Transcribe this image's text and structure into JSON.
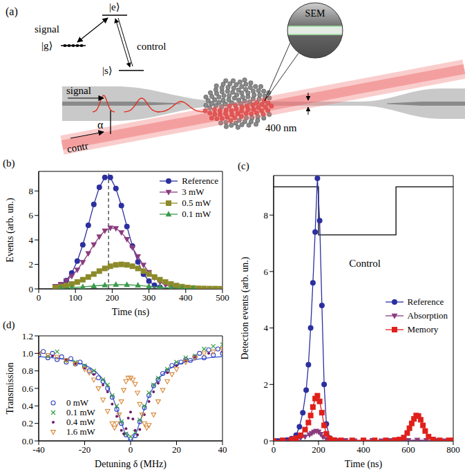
{
  "diagram": {
    "panel_label": "(a)",
    "level_e": "|e⟩",
    "level_g": "|g⟩",
    "level_s": "|s⟩",
    "transition_signal": "signal",
    "transition_control": "control",
    "sem": "SEM",
    "waist": "400 nm",
    "angle": "α",
    "signal_input": "signal",
    "control_input": "contr"
  },
  "chart_data": [
    {
      "type": "line",
      "panel_label": "(b)",
      "x_label": "Time (ns)",
      "y_label": "Events (arb. un.)",
      "xlim": [
        0,
        500
      ],
      "xticks": [
        0,
        100,
        200,
        300,
        400,
        500
      ],
      "ylim": [
        0,
        9.6
      ],
      "yticks": [
        0,
        2,
        4,
        6,
        8
      ],
      "legend": "upper right",
      "reference_line_x": 190,
      "series": [
        {
          "name": "Reference",
          "color": "#2c2f9e",
          "marker": "circle",
          "x": [
            45,
            60,
            75,
            90,
            105,
            120,
            135,
            150,
            165,
            180,
            195,
            210,
            225,
            240,
            255,
            270,
            285,
            300,
            315,
            330
          ],
          "values": [
            0.14,
            0.32,
            0.68,
            1.3,
            2.27,
            3.6,
            5.2,
            6.9,
            8.3,
            9.1,
            9.1,
            8.2,
            6.8,
            5.1,
            3.5,
            2.2,
            1.2,
            0.64,
            0.3,
            0.13
          ]
        },
        {
          "name": "3 mW",
          "color": "#8a3c7e",
          "marker": "triangle-down",
          "x": [
            45,
            60,
            75,
            90,
            105,
            120,
            135,
            150,
            165,
            180,
            195,
            210,
            225,
            240,
            255,
            270,
            285,
            300,
            315,
            330,
            345,
            360,
            375,
            390
          ],
          "values": [
            0.22,
            0.39,
            0.66,
            1.04,
            1.55,
            2.18,
            2.89,
            3.61,
            4.26,
            4.75,
            4.98,
            4.94,
            4.61,
            4.06,
            3.37,
            2.64,
            1.95,
            1.36,
            0.9,
            0.55,
            0.33,
            0.18,
            0.09,
            0.05
          ]
        },
        {
          "name": "0.5 mW",
          "color": "#8c8a2a",
          "marker": "square",
          "x": [
            45,
            60,
            75,
            90,
            105,
            120,
            135,
            150,
            165,
            180,
            195,
            210,
            225,
            240,
            255,
            270,
            285,
            300,
            315,
            330,
            345,
            360,
            375,
            390,
            405,
            420,
            435,
            450,
            465,
            480,
            495
          ],
          "values": [
            0.11,
            0.18,
            0.27,
            0.4,
            0.56,
            0.75,
            0.97,
            1.21,
            1.45,
            1.67,
            1.85,
            1.96,
            2.0,
            1.96,
            1.85,
            1.67,
            1.45,
            1.21,
            0.97,
            0.75,
            0.56,
            0.4,
            0.27,
            0.18,
            0.11,
            0.07,
            0.04,
            0.03,
            0.02,
            0.02,
            0.01
          ]
        },
        {
          "name": "0.1 mW",
          "color": "#3a9a4a",
          "marker": "triangle-up",
          "x": [
            60,
            90,
            120,
            150,
            180,
            210,
            240,
            270,
            300,
            330,
            360,
            390,
            420
          ],
          "values": [
            0.05,
            0.1,
            0.16,
            0.24,
            0.31,
            0.35,
            0.34,
            0.29,
            0.21,
            0.14,
            0.08,
            0.04,
            0.02
          ]
        }
      ]
    },
    {
      "type": "line",
      "panel_label": "(c)",
      "x_label": "Time (ns)",
      "y_label": "Detection events (arb. un.)",
      "xlim": [
        0,
        800
      ],
      "xticks": [
        0,
        200,
        400,
        600,
        800
      ],
      "ylim": [
        0,
        9.4
      ],
      "yticks": [
        0,
        2,
        4,
        6,
        8
      ],
      "legend": "right",
      "series": [
        {
          "name": "Control",
          "color": "#000000",
          "marker": "none",
          "x": [
            0,
            200,
            200,
            545,
            545,
            800
          ],
          "values": [
            9,
            9,
            7.3,
            7.3,
            9,
            9
          ]
        },
        {
          "name": "Reference",
          "color": "#2c2f9e",
          "marker": "circle",
          "x": [
            0,
            20,
            40,
            60,
            80,
            100,
            115,
            130,
            145,
            155,
            165,
            175,
            185,
            195,
            205,
            215,
            225,
            235,
            250,
            270,
            300
          ],
          "values": [
            0,
            0,
            0.01,
            0.03,
            0.08,
            0.2,
            0.5,
            1.0,
            1.8,
            2.7,
            4.0,
            5.6,
            7.4,
            9.3,
            7.8,
            4.8,
            2.0,
            0.6,
            0.1,
            0.02,
            0
          ]
        },
        {
          "name": "Absorption",
          "color": "#8a3c7e",
          "marker": "triangle-down",
          "x": [
            0,
            40,
            80,
            100,
            120,
            140,
            160,
            170,
            180,
            190,
            200,
            210,
            220,
            235,
            250,
            280,
            320,
            360,
            400,
            440,
            480,
            520,
            560,
            600,
            640,
            680,
            720,
            760,
            800
          ],
          "values": [
            0.01,
            0.02,
            0.04,
            0.06,
            0.1,
            0.15,
            0.22,
            0.27,
            0.32,
            0.35,
            0.32,
            0.24,
            0.14,
            0.06,
            0.03,
            0.02,
            0.02,
            0.01,
            0.02,
            0.02,
            0.01,
            0.02,
            0.02,
            0.02,
            0.03,
            0.02,
            0.02,
            0.01,
            0.02
          ]
        },
        {
          "name": "Memory",
          "color": "#e0201b",
          "marker": "square",
          "x": [
            0,
            40,
            80,
            100,
            120,
            140,
            155,
            165,
            175,
            185,
            195,
            205,
            215,
            225,
            235,
            250,
            270,
            300,
            350,
            400,
            450,
            500,
            540,
            560,
            580,
            595,
            605,
            615,
            625,
            635,
            645,
            655,
            665,
            675,
            690,
            710,
            740,
            780,
            800
          ],
          "values": [
            0,
            0.02,
            0.05,
            0.1,
            0.2,
            0.4,
            0.65,
            0.9,
            1.2,
            1.5,
            1.6,
            1.4,
            1.0,
            0.55,
            0.25,
            0.08,
            0.03,
            0.02,
            0.02,
            0.02,
            0.02,
            0.02,
            0.03,
            0.05,
            0.12,
            0.28,
            0.45,
            0.62,
            0.78,
            0.9,
            0.88,
            0.75,
            0.55,
            0.35,
            0.15,
            0.05,
            0.02,
            0.02,
            0.02
          ]
        }
      ]
    },
    {
      "type": "scatter",
      "panel_label": "(d)",
      "x_label": "Detuning δ (MHz)",
      "y_label": "Transmission",
      "xlim": [
        -40,
        40
      ],
      "xticks": [
        -40,
        -20,
        0,
        20,
        40
      ],
      "ylim": [
        0,
        1.2
      ],
      "yticks": [
        {
          "value": 0,
          "label": "0.0"
        },
        0.2,
        0.4,
        0.6,
        0.8,
        {
          "value": 1,
          "label": "1.0"
        },
        1.2
      ],
      "legend": "lower left",
      "series": [
        {
          "color": "#4060d0",
          "marker": "none",
          "type": "line",
          "x": [
            -40,
            -35,
            -30,
            -25,
            -20,
            -17.5,
            -15,
            -12.5,
            -10,
            -7.5,
            -5,
            -2.5,
            0,
            2.5,
            5,
            7.5,
            10,
            12.5,
            15,
            17.5,
            20,
            25,
            30,
            35,
            40
          ],
          "values": [
            0.963,
            0.953,
            0.937,
            0.911,
            0.868,
            0.834,
            0.787,
            0.719,
            0.621,
            0.48,
            0.29,
            0.093,
            0,
            0.093,
            0.29,
            0.48,
            0.621,
            0.719,
            0.787,
            0.834,
            0.868,
            0.911,
            0.937,
            0.953,
            0.963
          ]
        },
        {
          "name": "0 mW",
          "color": "#3040c0",
          "marker": "open-circle",
          "x": [
            -40,
            -38,
            -36,
            -34,
            -32,
            -30,
            -28,
            -26,
            -24,
            -22,
            -20,
            -18,
            -16,
            -14,
            -12,
            -10,
            -8,
            -6,
            -4,
            -2,
            0,
            2,
            4,
            6,
            8,
            10,
            12,
            14,
            16,
            18,
            20,
            22,
            24,
            26,
            28,
            30,
            32,
            34,
            36,
            38,
            40
          ],
          "values": [
            0.98,
            1.02,
            0.95,
            1.0,
            0.93,
            0.96,
            0.9,
            0.94,
            0.88,
            0.9,
            0.85,
            0.8,
            0.78,
            0.72,
            0.68,
            0.6,
            0.5,
            0.36,
            0.2,
            0.07,
            0.02,
            0.06,
            0.22,
            0.38,
            0.52,
            0.63,
            0.7,
            0.77,
            0.8,
            0.86,
            0.88,
            0.9,
            0.93,
            0.92,
            0.96,
            1.0,
            0.95,
            1.04,
            0.98,
            1.05,
            1.0
          ]
        },
        {
          "name": "0.1 mW",
          "color": "#3aa040",
          "marker": "x",
          "x": [
            -40,
            -36,
            -32,
            -28,
            -24,
            -20,
            -16,
            -12,
            -10,
            -8,
            -6,
            -4,
            -2,
            0,
            2,
            4,
            6,
            8,
            10,
            12,
            16,
            20,
            24,
            28,
            32,
            36,
            40
          ],
          "values": [
            1.0,
            0.97,
            1.02,
            0.92,
            0.9,
            0.86,
            0.8,
            0.7,
            0.64,
            0.52,
            0.4,
            0.22,
            0.08,
            0.05,
            0.1,
            0.24,
            0.4,
            0.55,
            0.64,
            0.72,
            0.82,
            0.9,
            0.95,
            0.97,
            1.05,
            1.08,
            1.1
          ]
        },
        {
          "name": "0.4 mW",
          "color": "#701a6a",
          "marker": "dot",
          "x": [
            -40,
            -34,
            -28,
            -24,
            -20,
            -16,
            -12,
            -10,
            -8,
            -6,
            -4,
            -3,
            -2,
            -1,
            0,
            1,
            2,
            3,
            4,
            6,
            8,
            10,
            12,
            16,
            20,
            24,
            28,
            34,
            40
          ],
          "values": [
            1.0,
            0.97,
            0.93,
            0.88,
            0.83,
            0.76,
            0.64,
            0.56,
            0.42,
            0.28,
            0.12,
            0.08,
            0.14,
            0.26,
            0.33,
            0.25,
            0.12,
            0.07,
            0.13,
            0.3,
            0.45,
            0.56,
            0.66,
            0.78,
            0.86,
            0.92,
            0.96,
            1.0,
            1.02
          ]
        },
        {
          "name": "1.6 mW",
          "color": "#d8893a",
          "marker": "open-triangle-down",
          "x": [
            -40,
            -36,
            -32,
            -28,
            -24,
            -20,
            -18,
            -16,
            -14,
            -12,
            -10,
            -8,
            -7,
            -6,
            -5,
            -4,
            -3,
            -2,
            -1,
            0,
            1,
            2,
            3,
            4,
            5,
            6,
            7,
            8,
            10,
            12,
            14,
            16,
            18,
            20,
            24,
            28,
            32,
            36,
            40
          ],
          "values": [
            1.0,
            0.98,
            0.96,
            0.92,
            0.88,
            0.82,
            0.78,
            0.7,
            0.6,
            0.47,
            0.34,
            0.2,
            0.15,
            0.2,
            0.3,
            0.45,
            0.58,
            0.68,
            0.72,
            0.72,
            0.7,
            0.65,
            0.55,
            0.42,
            0.3,
            0.2,
            0.15,
            0.18,
            0.3,
            0.45,
            0.58,
            0.68,
            0.76,
            0.82,
            0.9,
            0.95,
            1.0,
            1.02,
            1.05
          ]
        }
      ]
    }
  ]
}
